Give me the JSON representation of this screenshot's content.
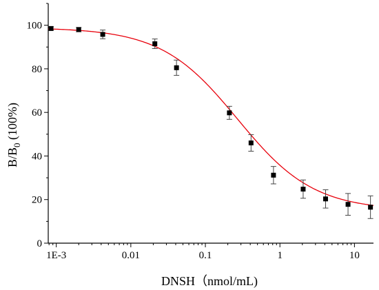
{
  "chart_data": {
    "type": "scatter",
    "xscale": "log",
    "xlabel": "DNSH（nmol/mL)",
    "ylabel_main": "B/B",
    "ylabel_sub": "0",
    "ylabel_tail": " (100%)",
    "xlim": [
      0.00078,
      18
    ],
    "ylim": [
      0,
      110
    ],
    "xticks": [
      {
        "value": 0.001,
        "label": "1E-3"
      },
      {
        "value": 0.01,
        "label": "0.01"
      },
      {
        "value": 0.1,
        "label": "0.1"
      },
      {
        "value": 1,
        "label": "1"
      },
      {
        "value": 10,
        "label": "10"
      }
    ],
    "yticks": [
      0,
      20,
      40,
      60,
      80,
      100
    ],
    "series": [
      {
        "marker_color": "#000000",
        "points": [
          {
            "x": 0.00085,
            "y": 98.5,
            "err": 0.8
          },
          {
            "x": 0.002,
            "y": 98.0,
            "err": 1.0
          },
          {
            "x": 0.0042,
            "y": 95.8,
            "err": 2.0
          },
          {
            "x": 0.021,
            "y": 91.5,
            "err": 2.2
          },
          {
            "x": 0.041,
            "y": 80.5,
            "err": 3.5
          },
          {
            "x": 0.21,
            "y": 59.8,
            "err": 3.0
          },
          {
            "x": 0.41,
            "y": 46.0,
            "err": 3.8
          },
          {
            "x": 0.82,
            "y": 31.2,
            "err": 4.0
          },
          {
            "x": 2.05,
            "y": 24.8,
            "err": 4.2
          },
          {
            "x": 4.1,
            "y": 20.3,
            "err": 4.2
          },
          {
            "x": 8.2,
            "y": 17.8,
            "err": 5.0
          },
          {
            "x": 16.4,
            "y": 16.5,
            "err": 5.2
          }
        ]
      }
    ],
    "fit": {
      "model": "four-parameter logistic",
      "top": 98.9,
      "bottom": 15.0,
      "ic50": 0.27,
      "hill": 0.85,
      "color": "#e8000b"
    }
  }
}
